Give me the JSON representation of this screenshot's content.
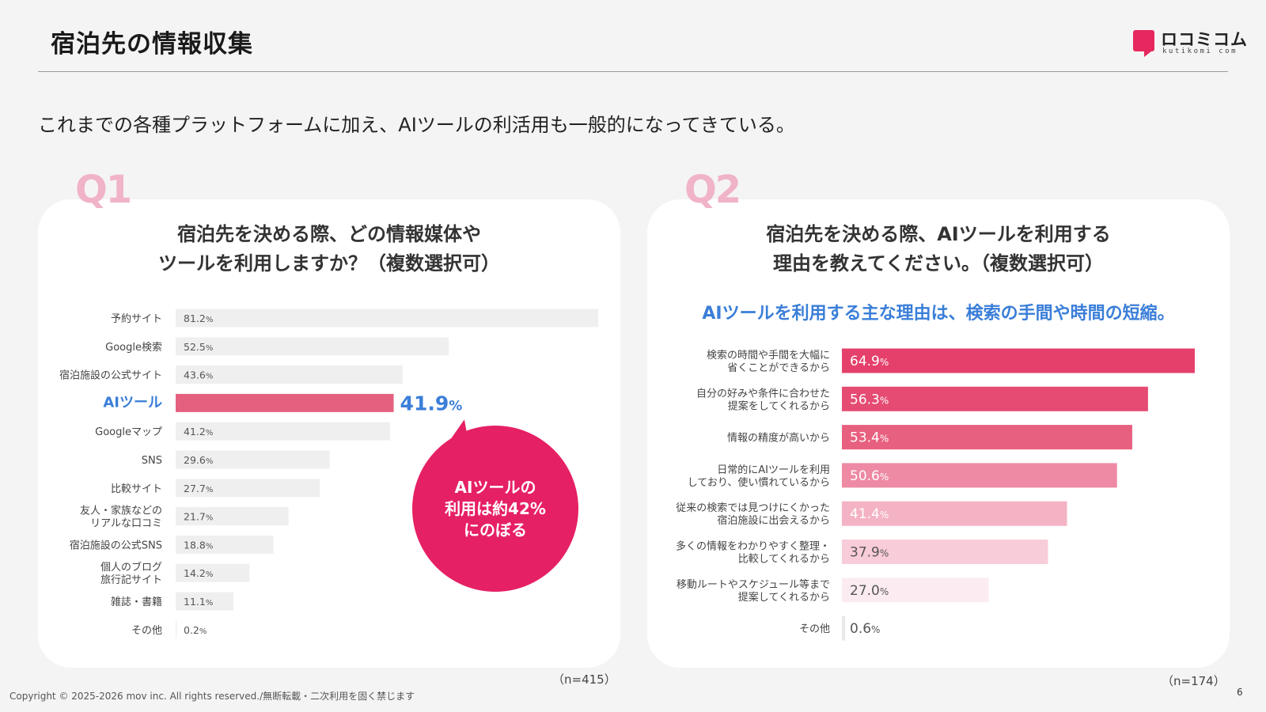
{
  "header": {
    "title": "宿泊先の情報収集",
    "logo_text": "ロコミコム",
    "logo_sub": "kutikomi com"
  },
  "lead": "これまでの各種プラットフォームに加え、AIツールの利活用も一般的になってきている。",
  "q1": {
    "label": "Q1",
    "question_line1": "宿泊先を決める際、どの情報媒体や",
    "question_line2": "ツールを利用しますか？（複数選択可）",
    "callout": "AIツールの\n利用は約42%\nにのぼる",
    "n": "（n=415）"
  },
  "q2": {
    "label": "Q2",
    "question_line1": "宿泊先を決める際、AIツールを利用する",
    "question_line2": "理由を教えてください。（複数選択可）",
    "subhead": "AIツールを利用する主な理由は、検索の手間や時間の短縮。",
    "n": "（n=174）"
  },
  "footer": {
    "copyright": "Copyright © 2025-2026 mov inc. All rights reserved./無断転載・二次利用を固く禁じます",
    "page": "6"
  },
  "colors": {
    "accent": "#e62065",
    "highlight_text": "#3a7ed8",
    "neutral_bar": "#efefef",
    "ai_bar": "#e5607f"
  },
  "chart_data": [
    {
      "type": "bar",
      "orientation": "horizontal",
      "xlim": [
        0,
        81.2
      ],
      "categories": [
        [
          "予約サイト"
        ],
        [
          "Google検索"
        ],
        [
          "宿泊施設の公式サイト"
        ],
        [
          "AIツール"
        ],
        [
          "Googleマップ"
        ],
        [
          "SNS"
        ],
        [
          "比較サイト"
        ],
        [
          "友人・家族などの",
          "リアルな口コミ"
        ],
        [
          "宿泊施設の公式SNS"
        ],
        [
          "個人のブログ",
          "旅行記サイト"
        ],
        [
          "雑誌・書籍"
        ],
        [
          "その他"
        ]
      ],
      "values": [
        81.2,
        52.5,
        43.6,
        41.9,
        41.2,
        29.6,
        27.7,
        21.7,
        18.8,
        14.2,
        11.1,
        0.2
      ],
      "highlight_index": 3,
      "unit": "%"
    },
    {
      "type": "bar",
      "orientation": "horizontal",
      "xlim": [
        0,
        64.9
      ],
      "categories": [
        [
          "検索の時間や手間を大幅に",
          "省くことができるから"
        ],
        [
          "自分の好みや条件に合わせた",
          "提案をしてくれるから"
        ],
        [
          "情報の精度が高いから"
        ],
        [
          "日常的にAIツールを利用",
          "しており、使い慣れているから"
        ],
        [
          "従来の検索では見つけにくかった",
          "宿泊施設に出会えるから"
        ],
        [
          "多くの情報をわかりやすく整理・",
          "比較してくれるから"
        ],
        [
          "移動ルートやスケジュール等まで",
          "提案してくれるから"
        ],
        [
          "その他"
        ]
      ],
      "values": [
        64.9,
        56.3,
        53.4,
        50.6,
        41.4,
        37.9,
        27.0,
        0.6
      ],
      "bar_colors": [
        "#e5406b",
        "#e54b73",
        "#e8607f",
        "#ee8aa3",
        "#f4b3c4",
        "#f8ccd8",
        "#fcecf1",
        "#e8e8e8"
      ],
      "unit": "%"
    }
  ]
}
